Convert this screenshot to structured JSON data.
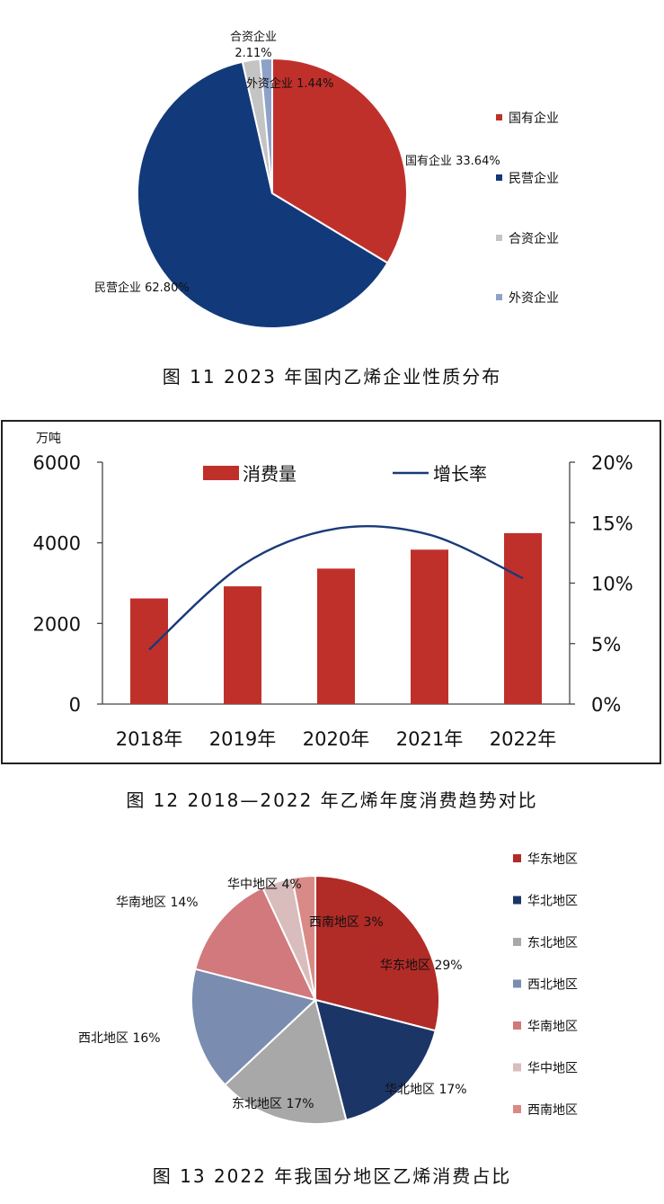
{
  "figure11": {
    "caption": "图 11  2023 年国内乙烯企业性质分布",
    "chart_data": {
      "type": "pie",
      "slices": [
        {
          "label": "国有企业",
          "data_label": "国有企业 33.64%",
          "value": 33.64,
          "color": "#c0302a"
        },
        {
          "label": "民营企业",
          "data_label": "民营企业 62.80%",
          "value": 62.8,
          "color": "#123a7a"
        },
        {
          "label": "合资企业",
          "data_label_line1": "合资企业",
          "data_label_line2": "2.11%",
          "value": 2.11,
          "color": "#c4c4c4"
        },
        {
          "label": "外资企业",
          "data_label": "外资企业 1.44%",
          "value": 1.44,
          "color": "#8ea2c8"
        }
      ],
      "legend": [
        "国有企业",
        "民营企业",
        "合资企业",
        "外资企业"
      ],
      "legend_position": "right"
    }
  },
  "figure12": {
    "caption": "图 12  2018—2022 年乙烯年度消费趋势对比",
    "chart_data": {
      "type": "bar",
      "categories": [
        "2018年",
        "2019年",
        "2020年",
        "2021年",
        "2022年"
      ],
      "series": [
        {
          "name": "消费量",
          "type": "bar",
          "axis": "left",
          "values": [
            2620,
            2920,
            3360,
            3830,
            4240
          ],
          "color": "#c0302a"
        },
        {
          "name": "增长率",
          "type": "line",
          "axis": "right",
          "values": [
            4.5,
            11.5,
            14.5,
            14.0,
            10.4
          ],
          "color": "#1a3a7a"
        }
      ],
      "ylabel": "万吨",
      "ylim": [
        0,
        6000
      ],
      "yticks": [
        "0",
        "2000",
        "4000",
        "6000"
      ],
      "y2lim": [
        0,
        20
      ],
      "y2ticks": [
        "0%",
        "5%",
        "10%",
        "15%",
        "20%"
      ],
      "legend_position": "top",
      "grid": false
    }
  },
  "figure13": {
    "caption": "图 13  2022 年我国分地区乙烯消费占比",
    "chart_data": {
      "type": "pie",
      "slices": [
        {
          "label": "华东地区",
          "data_label": "华东地区 29%",
          "value": 29,
          "color": "#b12b27"
        },
        {
          "label": "华北地区",
          "data_label": "华北地区 17%",
          "value": 17,
          "color": "#1c3567"
        },
        {
          "label": "东北地区",
          "data_label": "东北地区 17%",
          "value": 17,
          "color": "#a8a8a8"
        },
        {
          "label": "西北地区",
          "data_label": "西北地区 16%",
          "value": 16,
          "color": "#7a8db0"
        },
        {
          "label": "华南地区",
          "data_label": "华南地区 14%",
          "value": 14,
          "color": "#d1797c"
        },
        {
          "label": "华中地区",
          "data_label": "华中地区 4%",
          "value": 4,
          "color": "#d9bcbc"
        },
        {
          "label": "西南地区",
          "data_label": "西南地区 3%",
          "value": 3,
          "color": "#d98a86"
        }
      ],
      "legend": [
        "华东地区",
        "华北地区",
        "东北地区",
        "西北地区",
        "华南地区",
        "华中地区",
        "西南地区"
      ],
      "legend_position": "right"
    }
  }
}
